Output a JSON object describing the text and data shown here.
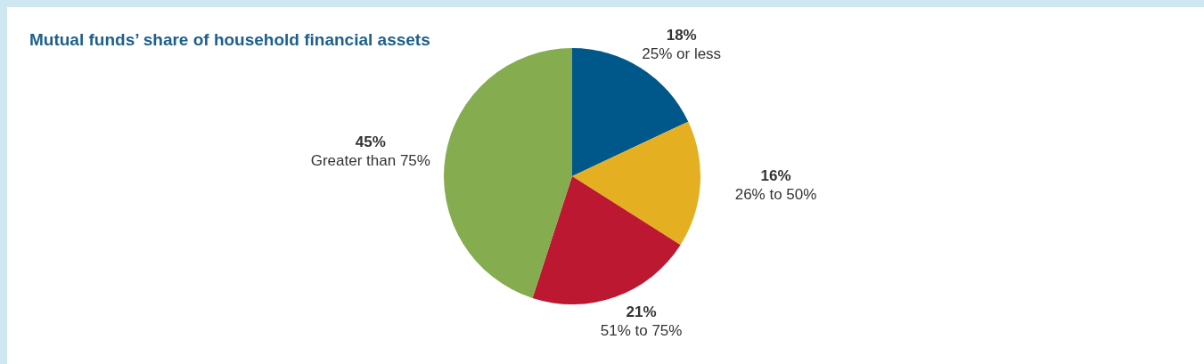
{
  "chart_data": {
    "type": "pie",
    "title": "Mutual funds’ share of household financial assets",
    "categories": [
      "25% or less",
      "26% to 50%",
      "51% to 75%",
      "Greater than 75%"
    ],
    "values": [
      18,
      16,
      21,
      45
    ],
    "colors": [
      "#00578a",
      "#e4b021",
      "#bc1831",
      "#86ac50"
    ],
    "value_labels": [
      "18%",
      "16%",
      "21%",
      "45%"
    ]
  }
}
